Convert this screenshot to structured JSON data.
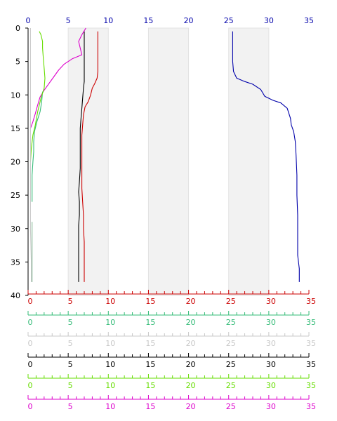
{
  "chart_data": {
    "type": "line",
    "title": "",
    "orientation": "vertical-profile",
    "y_axis": {
      "label": "",
      "range": [
        0,
        40
      ],
      "ticks": [
        "0",
        "5",
        "10",
        "15",
        "20",
        "25",
        "30",
        "35",
        "40"
      ],
      "inverted": true,
      "color": "#000000"
    },
    "top_axis": {
      "range": [
        0,
        35
      ],
      "ticks": [
        "0",
        "5",
        "10",
        "15",
        "20",
        "25",
        "30",
        "35"
      ],
      "color": "#0000aa"
    },
    "bottom_axes": [
      {
        "range": [
          0,
          35
        ],
        "ticks": [
          "0",
          "5",
          "10",
          "15",
          "20",
          "25",
          "30",
          "35"
        ],
        "color": "#cc0000"
      },
      {
        "range": [
          0,
          35
        ],
        "ticks": [
          "0",
          "5",
          "10",
          "15",
          "20",
          "25",
          "30",
          "35"
        ],
        "color": "#33bb77"
      },
      {
        "range": [
          0,
          35
        ],
        "ticks": [
          "0",
          "5",
          "10",
          "15",
          "20",
          "25",
          "30",
          "35"
        ],
        "color": "#c8c8c8"
      },
      {
        "range": [
          0,
          35
        ],
        "ticks": [
          "0",
          "5",
          "10",
          "15",
          "20",
          "25",
          "30",
          "35"
        ],
        "color": "#000000"
      },
      {
        "range": [
          0,
          35
        ],
        "ticks": [
          "0",
          "5",
          "10",
          "15",
          "20",
          "25",
          "30",
          "35"
        ],
        "color": "#66dd00"
      },
      {
        "range": [
          0,
          35
        ],
        "ticks": [
          "0",
          "5",
          "10",
          "15",
          "20",
          "25",
          "30",
          "35"
        ],
        "color": "#dd00cc"
      }
    ],
    "shaded_bands": [
      [
        5,
        10
      ],
      [
        15,
        20
      ],
      [
        25,
        30
      ]
    ],
    "grid": false,
    "legend": "none",
    "series": [
      {
        "color": "#0000aa",
        "points": [
          [
            25.5,
            0.5
          ],
          [
            25.5,
            3
          ],
          [
            25.5,
            5
          ],
          [
            25.6,
            6.5
          ],
          [
            26,
            7.5
          ],
          [
            27,
            8
          ],
          [
            28,
            8.4
          ],
          [
            29,
            9.2
          ],
          [
            29.5,
            10.2
          ],
          [
            30.5,
            10.8
          ],
          [
            31.5,
            11.2
          ],
          [
            32.3,
            12
          ],
          [
            32.7,
            13.5
          ],
          [
            32.8,
            14.5
          ],
          [
            33.1,
            15.5
          ],
          [
            33.3,
            17
          ],
          [
            33.4,
            19
          ],
          [
            33.5,
            22
          ],
          [
            33.5,
            25
          ],
          [
            33.6,
            28
          ],
          [
            33.6,
            31
          ],
          [
            33.6,
            34
          ],
          [
            33.8,
            36
          ],
          [
            33.8,
            38
          ]
        ]
      },
      {
        "color": "#cc0000",
        "points": [
          [
            8.7,
            0.5
          ],
          [
            8.7,
            3
          ],
          [
            8.7,
            6.5
          ],
          [
            8.6,
            7.5
          ],
          [
            8.3,
            8.3
          ],
          [
            8,
            9
          ],
          [
            7.8,
            10
          ],
          [
            7.5,
            11
          ],
          [
            7.1,
            11.8
          ],
          [
            6.9,
            13
          ],
          [
            6.8,
            14.5
          ],
          [
            6.7,
            16
          ],
          [
            6.7,
            18
          ],
          [
            6.7,
            20
          ],
          [
            6.7,
            22
          ],
          [
            6.7,
            24
          ],
          [
            6.8,
            26
          ],
          [
            6.9,
            28
          ],
          [
            6.9,
            30
          ],
          [
            7,
            32
          ],
          [
            7,
            35
          ],
          [
            7,
            38
          ]
        ]
      },
      {
        "color": "#000000",
        "points": [
          [
            7,
            0.5
          ],
          [
            7,
            2
          ],
          [
            7,
            4
          ],
          [
            7,
            6
          ],
          [
            7,
            8
          ],
          [
            6.9,
            9
          ],
          [
            6.8,
            10.5
          ],
          [
            6.7,
            12
          ],
          [
            6.6,
            13.5
          ],
          [
            6.5,
            15
          ],
          [
            6.5,
            17
          ],
          [
            6.5,
            19
          ],
          [
            6.5,
            21
          ],
          [
            6.4,
            23
          ],
          [
            6.3,
            24.5
          ],
          [
            6.4,
            26
          ],
          [
            6.4,
            28
          ],
          [
            6.3,
            29.5
          ],
          [
            6.3,
            31
          ],
          [
            6.3,
            33
          ],
          [
            6.3,
            35
          ],
          [
            6.3,
            37
          ],
          [
            6.3,
            38
          ]
        ]
      },
      {
        "color": "#dd00cc",
        "points": [
          [
            7.2,
            0
          ],
          [
            6.7,
            1
          ],
          [
            6.3,
            2
          ],
          [
            6.5,
            3
          ],
          [
            6.7,
            4
          ],
          [
            5.5,
            4.6
          ],
          [
            4.5,
            5.4
          ],
          [
            3.8,
            6.3
          ],
          [
            3.2,
            7.3
          ],
          [
            2.6,
            8.3
          ],
          [
            2,
            9.3
          ],
          [
            1.5,
            10.3
          ],
          [
            1.2,
            11.5
          ],
          [
            0.9,
            12.8
          ],
          [
            0.6,
            14
          ],
          [
            0.3,
            15
          ]
        ]
      },
      {
        "color": "#33bb77",
        "points": [
          [
            1.8,
            9.5
          ],
          [
            1.7,
            11
          ],
          [
            1.5,
            12.5
          ],
          [
            1.1,
            14
          ],
          [
            0.8,
            15.5
          ],
          [
            0.7,
            17
          ],
          [
            0.7,
            18.5
          ],
          [
            0.6,
            20
          ],
          [
            0.5,
            22
          ],
          [
            0.5,
            24
          ],
          [
            0.5,
            26
          ]
        ]
      },
      {
        "color": "#66dd00",
        "points": [
          [
            1.4,
            0.5
          ],
          [
            1.6,
            1
          ],
          [
            1.8,
            2
          ],
          [
            1.8,
            3
          ],
          [
            1.9,
            4.5
          ],
          [
            2,
            6
          ],
          [
            2.1,
            7.5
          ],
          [
            2,
            9
          ],
          [
            1.6,
            10.5
          ],
          [
            1.2,
            12.5
          ],
          [
            0.9,
            14.5
          ],
          [
            0.6,
            16
          ],
          [
            0.4,
            18
          ],
          [
            0.3,
            20
          ]
        ]
      },
      {
        "color": "#c8c8c8",
        "points": [
          [
            0.3,
            0
          ],
          [
            0.3,
            5
          ],
          [
            0.3,
            10
          ],
          [
            0.3,
            15
          ],
          [
            0.3,
            20
          ],
          [
            0.3,
            25
          ],
          [
            0.3,
            30
          ],
          [
            0.4,
            35
          ],
          [
            0.4,
            38
          ]
        ]
      },
      {
        "color": "#88bb99",
        "points": [
          [
            0.5,
            29
          ],
          [
            0.5,
            31
          ],
          [
            0.5,
            33
          ],
          [
            0.5,
            35
          ],
          [
            0.5,
            37
          ],
          [
            0.5,
            38
          ]
        ]
      }
    ]
  }
}
